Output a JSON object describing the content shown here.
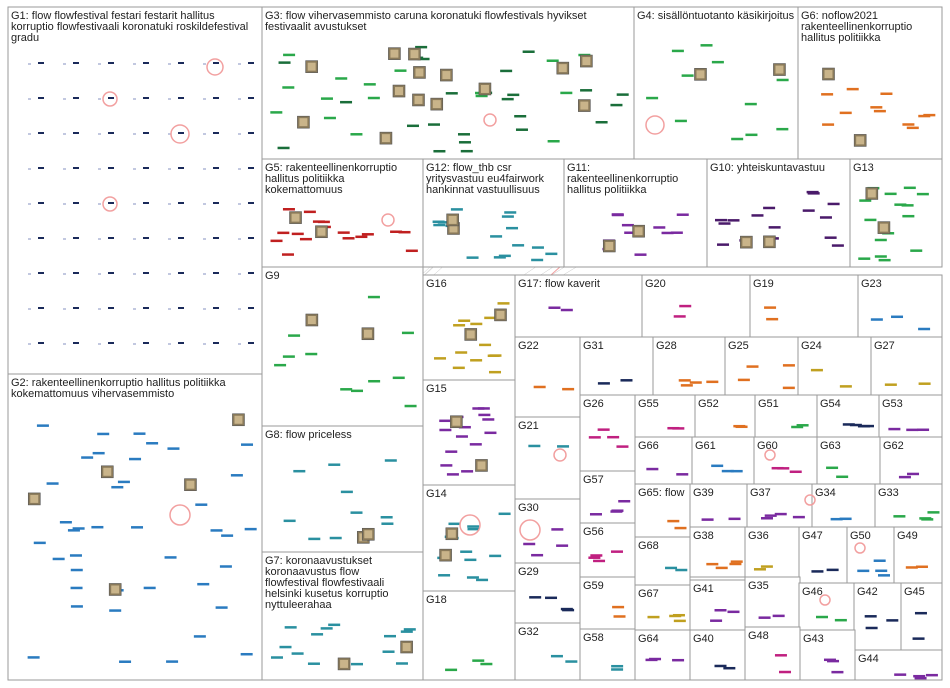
{
  "graph": {
    "groups": [
      {
        "id": "g1",
        "lines": [
          "G1: flow flowfestival festari festarit hallitus",
          "korruptio flowfestivaali koronatuki roskildefestival",
          "gradu"
        ]
      },
      {
        "id": "g2",
        "lines": [
          "G2: rakenteellinenkorruptio hallitus politiikka",
          "kokemattomuus vihervasemmisto"
        ]
      },
      {
        "id": "g3",
        "lines": [
          "G3: flow vihervasemmisto caruna koronatuki flowfestivals hyvikset",
          "festivaalit avustukset"
        ]
      },
      {
        "id": "g4",
        "lines": [
          "G4: sisällöntuotanto käsikirjoitus"
        ]
      },
      {
        "id": "g6",
        "lines": [
          "G6: noflow2021",
          "rakenteellinenkorruptio",
          "hallitus politiikka"
        ]
      },
      {
        "id": "g5",
        "lines": [
          "G5: rakenteellinenkorruptio",
          "hallitus politiikka",
          "kokemattomuus"
        ]
      },
      {
        "id": "g12",
        "lines": [
          "G12: flow_thb csr",
          "yritysvastuu eu4fairwork",
          "hankinnat vastuullisuus"
        ]
      },
      {
        "id": "g11",
        "lines": [
          "G11:",
          "rakenteellinenkorruptio",
          "hallitus politiikka"
        ]
      },
      {
        "id": "g10",
        "lines": [
          "G10: yhteiskuntavastuu"
        ]
      },
      {
        "id": "g13",
        "lines": [
          "G13"
        ]
      },
      {
        "id": "g9",
        "lines": [
          "G9"
        ]
      },
      {
        "id": "g16",
        "lines": [
          "G16"
        ]
      },
      {
        "id": "g17",
        "lines": [
          "G17: flow kaverit"
        ]
      },
      {
        "id": "g20",
        "lines": [
          "G20"
        ]
      },
      {
        "id": "g19",
        "lines": [
          "G19"
        ]
      },
      {
        "id": "g23",
        "lines": [
          "G23"
        ]
      },
      {
        "id": "g22",
        "lines": [
          "G22"
        ]
      },
      {
        "id": "g31",
        "lines": [
          "G31"
        ]
      },
      {
        "id": "g28",
        "lines": [
          "G28"
        ]
      },
      {
        "id": "g25",
        "lines": [
          "G25"
        ]
      },
      {
        "id": "g24",
        "lines": [
          "G24"
        ]
      },
      {
        "id": "g27",
        "lines": [
          "G27"
        ]
      },
      {
        "id": "g15",
        "lines": [
          "G15"
        ]
      },
      {
        "id": "g8",
        "lines": [
          "G8: flow priceless"
        ]
      },
      {
        "id": "g26",
        "lines": [
          "G26"
        ]
      },
      {
        "id": "g55",
        "lines": [
          "G55"
        ]
      },
      {
        "id": "g52",
        "lines": [
          "G52"
        ]
      },
      {
        "id": "g51",
        "lines": [
          "G51"
        ]
      },
      {
        "id": "g54",
        "lines": [
          "G54"
        ]
      },
      {
        "id": "g53",
        "lines": [
          "G53"
        ]
      },
      {
        "id": "g21",
        "lines": [
          "G21"
        ]
      },
      {
        "id": "g66",
        "lines": [
          "G66"
        ]
      },
      {
        "id": "g61",
        "lines": [
          "G61"
        ]
      },
      {
        "id": "g60",
        "lines": [
          "G60"
        ]
      },
      {
        "id": "g63",
        "lines": [
          "G63"
        ]
      },
      {
        "id": "g62",
        "lines": [
          "G62"
        ]
      },
      {
        "id": "g57",
        "lines": [
          "G57"
        ]
      },
      {
        "id": "g14",
        "lines": [
          "G14"
        ]
      },
      {
        "id": "g65",
        "lines": [
          "G65: flow"
        ]
      },
      {
        "id": "g39",
        "lines": [
          "G39"
        ]
      },
      {
        "id": "g37",
        "lines": [
          "G37"
        ]
      },
      {
        "id": "g34",
        "lines": [
          "G34"
        ]
      },
      {
        "id": "g33",
        "lines": [
          "G33"
        ]
      },
      {
        "id": "g30",
        "lines": [
          "G30"
        ]
      },
      {
        "id": "g56",
        "lines": [
          "G56"
        ]
      },
      {
        "id": "g68",
        "lines": [
          "G68"
        ]
      },
      {
        "id": "g38",
        "lines": [
          "G38"
        ]
      },
      {
        "id": "g36",
        "lines": [
          "G36"
        ]
      },
      {
        "id": "g47",
        "lines": [
          "G47"
        ]
      },
      {
        "id": "g50",
        "lines": [
          "G50"
        ]
      },
      {
        "id": "g49",
        "lines": [
          "G49"
        ]
      },
      {
        "id": "g7",
        "lines": [
          "G7: koronaavustukset",
          "koronaavustus flow",
          "flowfestival flowfestivaali",
          "helsinki kusetus korruptio",
          "nyttuleerahaa"
        ]
      },
      {
        "id": "g29",
        "lines": [
          "G29"
        ]
      },
      {
        "id": "g59",
        "lines": [
          "G59"
        ]
      },
      {
        "id": "g67",
        "lines": [
          "G67"
        ]
      },
      {
        "id": "g41",
        "lines": [
          "G41"
        ]
      },
      {
        "id": "g35",
        "lines": [
          "G35"
        ]
      },
      {
        "id": "g46",
        "lines": [
          "G46"
        ]
      },
      {
        "id": "g42",
        "lines": [
          "G42"
        ]
      },
      {
        "id": "g45",
        "lines": [
          "G45"
        ]
      },
      {
        "id": "g18",
        "lines": [
          "G18"
        ]
      },
      {
        "id": "g32",
        "lines": [
          "G32"
        ]
      },
      {
        "id": "g58",
        "lines": [
          "G58"
        ]
      },
      {
        "id": "g64",
        "lines": [
          "G64"
        ]
      },
      {
        "id": "g40",
        "lines": [
          "G40"
        ]
      },
      {
        "id": "g48",
        "lines": [
          "G48"
        ]
      },
      {
        "id": "g43",
        "lines": [
          "G43"
        ]
      },
      {
        "id": "g44",
        "lines": [
          "G44"
        ]
      }
    ],
    "colors": {
      "border": "#9a9a9a",
      "edge": "#c8c8c8",
      "red_edge": "#f0a0a0",
      "g1": "#1a2a5a",
      "g2": "#2a7bc0",
      "g3": "#1a6e3a",
      "g4": "#2aa84a",
      "g6": "#e07020",
      "g5": "#c02020",
      "g12": "#2a90a0",
      "g11": "#7a2aa0",
      "g10": "#4a1a6a"
    }
  }
}
